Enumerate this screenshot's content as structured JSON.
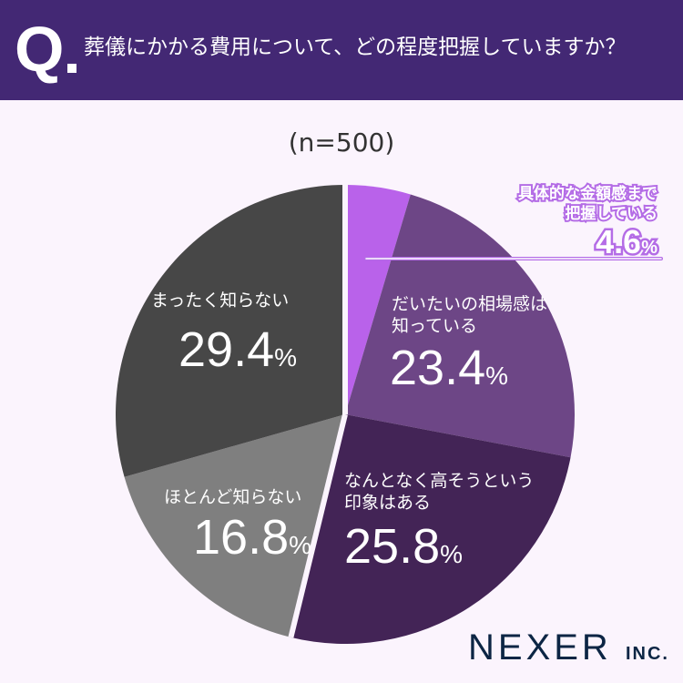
{
  "header": {
    "q_mark": "Q",
    "title": "葬儀にかかる費用について、どの程度把握していますか？"
  },
  "sample": "(n=500)",
  "slices": [
    {
      "label": "具体的な金額感まで把握している",
      "label_line1": "具体的な金額感まで",
      "label_line2": "把握している",
      "value": "4.6",
      "color": "#b962ea"
    },
    {
      "label": "だいたいの相場感は知っている",
      "label_line1": "だいたいの相場感は",
      "label_line2": "知っている",
      "value": "23.4",
      "color": "#6d4686"
    },
    {
      "label": "なんとなく高そうという印象はある",
      "label_line1": "なんとなく高そうという",
      "label_line2": "印象はある",
      "value": "25.8",
      "color": "#432456"
    },
    {
      "label": "ほとんど知らない",
      "label_line1": "ほとんど知らない",
      "value": "16.8",
      "color": "#7f7f7f"
    },
    {
      "label": "まったく知らない",
      "label_line1": "まったく知らない",
      "value": "29.4",
      "color": "#474747"
    }
  ],
  "percent_sign": "%",
  "logo": {
    "main": "NEXER",
    "suffix": "INC."
  },
  "chart_data": {
    "type": "pie",
    "title": "葬儀にかかる費用について、どの程度把握していますか？",
    "subtitle": "(n=500)",
    "categories": [
      "具体的な金額感まで把握している",
      "だいたいの相場感は知っている",
      "なんとなく高そうという印象はある",
      "ほとんど知らない",
      "まったく知らない"
    ],
    "values": [
      4.6,
      23.4,
      25.8,
      16.8,
      29.4
    ],
    "colors": [
      "#b962ea",
      "#6d4686",
      "#432456",
      "#7f7f7f",
      "#474747"
    ],
    "unit": "%",
    "start_angle": "12 o'clock, clockwise",
    "legend": "none (labels inside slices)"
  }
}
